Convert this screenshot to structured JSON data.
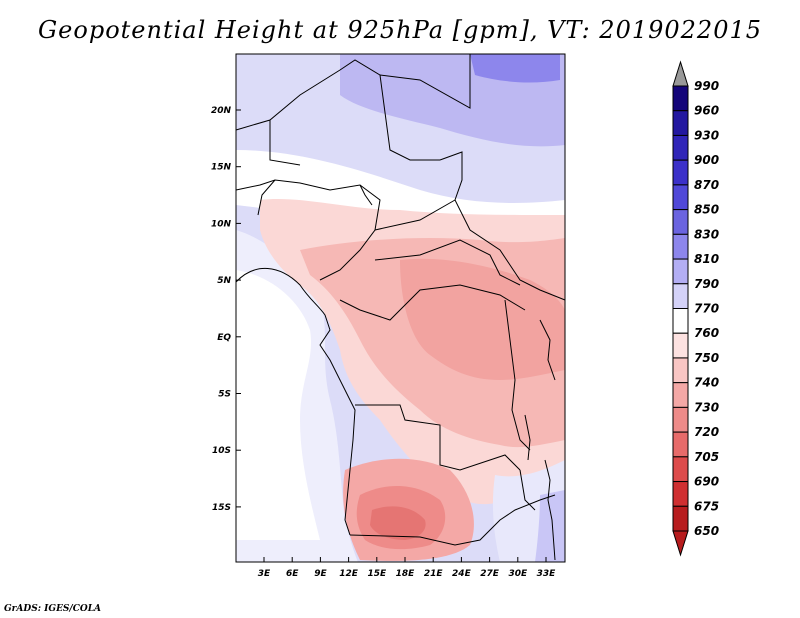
{
  "title": "Geopotential Height at 925hPa [gpm], VT: 2019022015",
  "footer": "GrADS: IGES/COLA",
  "map": {
    "lon_ticks": [
      "3E",
      "6E",
      "9E",
      "12E",
      "15E",
      "18E",
      "21E",
      "24E",
      "27E",
      "30E",
      "33E"
    ],
    "lat_ticks": [
      "20N",
      "15N",
      "10N",
      "5N",
      "EQ",
      "5S",
      "10S",
      "15S"
    ]
  },
  "colorbar": {
    "levels": [
      "990",
      "960",
      "930",
      "900",
      "870",
      "850",
      "830",
      "810",
      "790",
      "770",
      "760",
      "750",
      "740",
      "730",
      "720",
      "705",
      "690",
      "675",
      "650"
    ],
    "colors": [
      "#14057a",
      "#2318a0",
      "#3025b8",
      "#3b30c9",
      "#5048d8",
      "#6b64e0",
      "#8d86ec",
      "#b3aef4",
      "#d4d2f8",
      "#ffffff",
      "#fde2e1",
      "#f9c6c4",
      "#f4a8a6",
      "#ee8b89",
      "#e76b6a",
      "#dd4b4b",
      "#cf2f31",
      "#b71c1e"
    ],
    "top_color": "#999999",
    "bottom_color": "#b71c1e"
  }
}
